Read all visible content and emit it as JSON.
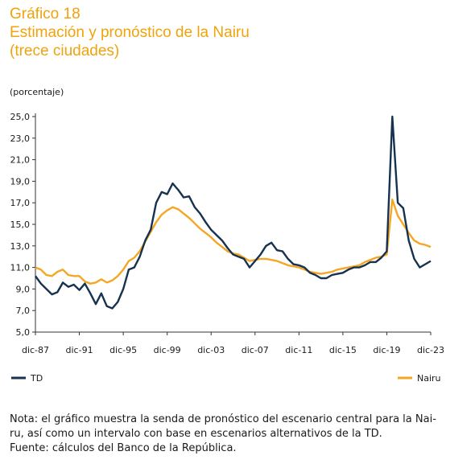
{
  "chart_data": {
    "type": "line",
    "title": [
      "Gráfico 18",
      "Estimación y pronóstico de la Nairu",
      "(trece ciudades)"
    ],
    "y_label": "(porcentaje)",
    "categories": [
      "dic-87",
      null,
      null,
      null,
      null,
      null,
      null,
      null,
      "dic-91",
      null,
      null,
      null,
      null,
      null,
      null,
      null,
      "dic-95",
      null,
      null,
      null,
      null,
      null,
      null,
      null,
      "dic-99",
      null,
      null,
      null,
      null,
      null,
      null,
      null,
      "dic-03",
      null,
      null,
      null,
      null,
      null,
      null,
      null,
      "dic-07",
      null,
      null,
      null,
      null,
      null,
      null,
      null,
      "dic-11",
      null,
      null,
      null,
      null,
      null,
      null,
      null,
      "dic-15",
      null,
      null,
      null,
      null,
      null,
      null,
      null,
      "dic-19",
      null,
      null,
      null,
      null,
      null,
      null,
      null,
      "dic-23"
    ],
    "series": [
      {
        "name": "TD",
        "color": "#16324f",
        "values": [
          10.2,
          9.5,
          9.0,
          8.5,
          8.7,
          9.6,
          9.2,
          9.4,
          8.9,
          9.5,
          8.6,
          7.6,
          8.6,
          7.4,
          7.2,
          7.8,
          9.0,
          10.8,
          11.0,
          12.0,
          13.5,
          14.5,
          17.0,
          18.0,
          17.8,
          18.8,
          18.2,
          17.5,
          17.6,
          16.6,
          16.0,
          15.2,
          14.5,
          14.0,
          13.5,
          12.8,
          12.2,
          12.0,
          11.8,
          11.0,
          11.6,
          12.2,
          13.0,
          13.3,
          12.6,
          12.5,
          11.8,
          11.3,
          11.2,
          11.0,
          10.5,
          10.3,
          10.0,
          10.0,
          10.3,
          10.4,
          10.5,
          10.8,
          11.0,
          11.0,
          11.2,
          11.5,
          11.5,
          11.9,
          12.5,
          25.0,
          17.0,
          16.5,
          13.5,
          11.8,
          11.0,
          11.3,
          11.6
        ]
      },
      {
        "name": "Nairu",
        "color": "#f5a623",
        "values": [
          11.0,
          10.8,
          10.3,
          10.2,
          10.6,
          10.8,
          10.3,
          10.2,
          10.2,
          9.7,
          9.5,
          9.6,
          9.9,
          9.6,
          9.8,
          10.2,
          10.8,
          11.6,
          11.9,
          12.5,
          13.4,
          14.3,
          15.2,
          15.9,
          16.3,
          16.6,
          16.4,
          16.0,
          15.6,
          15.1,
          14.6,
          14.2,
          13.8,
          13.3,
          12.9,
          12.5,
          12.3,
          12.2,
          11.9,
          11.6,
          11.7,
          11.8,
          11.8,
          11.7,
          11.6,
          11.4,
          11.2,
          11.1,
          11.0,
          10.8,
          10.6,
          10.5,
          10.4,
          10.5,
          10.6,
          10.8,
          10.9,
          11.0,
          11.1,
          11.2,
          11.5,
          11.7,
          11.9,
          12.0,
          12.2,
          17.3,
          15.8,
          15.0,
          14.2,
          13.5,
          13.2,
          13.1,
          12.9
        ]
      }
    ],
    "ylim": [
      5,
      25
    ],
    "yticks": [
      {
        "value": 5,
        "label": "5,0"
      },
      {
        "value": 7,
        "label": "7,0"
      },
      {
        "value": 9,
        "label": "9,0"
      },
      {
        "value": 11,
        "label": "11,0"
      },
      {
        "value": 13,
        "label": "13,0"
      },
      {
        "value": 15,
        "label": "15,0"
      },
      {
        "value": 17,
        "label": "17,0"
      },
      {
        "value": 19,
        "label": "19,0"
      },
      {
        "value": 21,
        "label": "21,0"
      },
      {
        "value": 23,
        "label": "23,0"
      },
      {
        "value": 25,
        "label": "25,0"
      }
    ],
    "notes": [
      "Nota: el gráfico muestra la senda de pronóstico del escenario central para la Nai-",
      "ru, así como un intervalo con base en escenarios alternativos de la TD.",
      "Fuente: cálculos del Banco de la República."
    ]
  }
}
